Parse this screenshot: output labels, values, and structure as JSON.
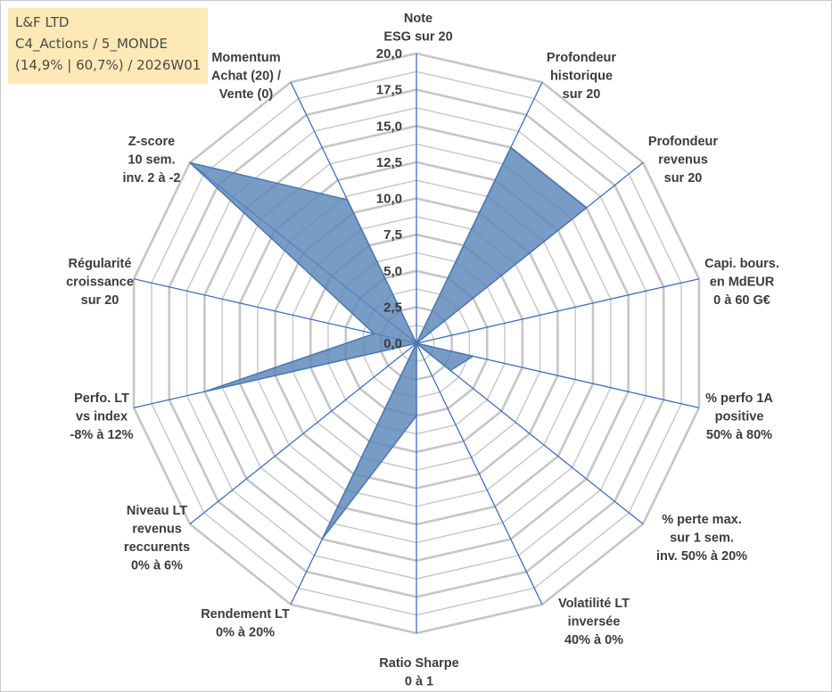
{
  "info": {
    "company": "L&F LTD",
    "category": "C4_Actions / 5_MONDE",
    "stats": "(14,9% | 60,7%) / 2026W01"
  },
  "chart_data": {
    "type": "radar",
    "title": "",
    "rmin": 0,
    "rmax": 20,
    "ticks": [
      "0,0",
      "2,5",
      "5,0",
      "7,5",
      "10,0",
      "12,5",
      "15,0",
      "17,5",
      "20,0"
    ],
    "gridline_step": 1.25,
    "axes": [
      {
        "label": [
          "Note",
          "ESG sur 20"
        ],
        "value": 0
      },
      {
        "label": [
          "Profondeur",
          "historique",
          "sur 20"
        ],
        "value": 15
      },
      {
        "label": [
          "Profondeur",
          "revenus",
          "sur 20"
        ],
        "value": 15
      },
      {
        "label": [
          "Capi. bours.",
          "en MdEUR",
          "0 à 60 G€"
        ],
        "value": 0
      },
      {
        "label": [
          "% perfo 1A",
          "positive",
          "50% à 80%"
        ],
        "value": 4
      },
      {
        "label": [
          "% perte max.",
          "sur 1 sem.",
          "inv. 50% à 20%"
        ],
        "value": 3
      },
      {
        "label": [
          "Volatilité LT",
          "inversée",
          "40% à 0%"
        ],
        "value": 0
      },
      {
        "label": [
          "Ratio Sharpe",
          "0 à 1"
        ],
        "value": 5
      },
      {
        "label": [
          "Rendement LT",
          "0% à 20%"
        ],
        "value": 15
      },
      {
        "label": [
          "Niveau LT",
          "revenus",
          "reccurents",
          "0% à 6%"
        ],
        "value": 0
      },
      {
        "label": [
          "Perfo. LT",
          "vs index",
          "-8% à 12%"
        ],
        "value": 15
      },
      {
        "label": [
          "Régularité",
          "croissance",
          "sur 20"
        ],
        "value": 3
      },
      {
        "label": [
          "Z-score",
          "10 sem.",
          "inv. 2 à -2"
        ],
        "value": 20
      },
      {
        "label": [
          "Momentum",
          "Achat (20) /",
          "Vente (0)"
        ],
        "value": 11
      }
    ],
    "series": [
      {
        "name": "L&F LTD",
        "color": "#5a86b8"
      }
    ]
  }
}
